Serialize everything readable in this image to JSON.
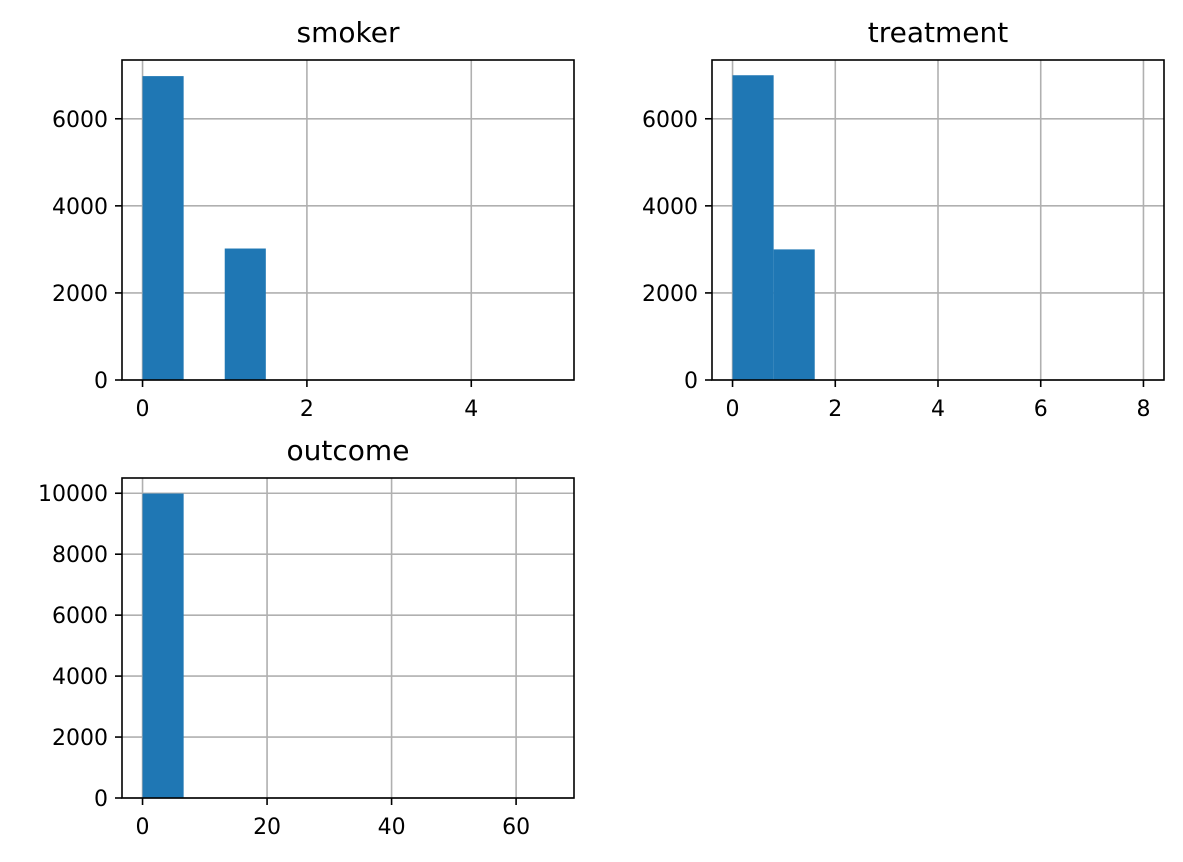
{
  "colors": {
    "bar": "#1f77b4",
    "grid": "#b0b0b0",
    "axis": "#000000",
    "background": "#ffffff"
  },
  "chart_data": [
    {
      "type": "bar",
      "title": "smoker",
      "xlabel": "",
      "ylabel": "",
      "grid": true,
      "xlim": [
        -0.25,
        5.25
      ],
      "ylim": [
        0,
        7350
      ],
      "xticks": [
        0,
        2,
        4
      ],
      "yticks": [
        0,
        2000,
        4000,
        6000
      ],
      "bins": [
        {
          "x0": 0.0,
          "x1": 0.5,
          "count": 6980
        },
        {
          "x0": 0.5,
          "x1": 1.0,
          "count": 0
        },
        {
          "x0": 1.0,
          "x1": 1.5,
          "count": 3020
        },
        {
          "x0": 1.5,
          "x1": 2.0,
          "count": 0
        },
        {
          "x0": 2.0,
          "x1": 2.5,
          "count": 0
        },
        {
          "x0": 2.5,
          "x1": 3.0,
          "count": 0
        },
        {
          "x0": 3.0,
          "x1": 3.5,
          "count": 0
        },
        {
          "x0": 3.5,
          "x1": 4.0,
          "count": 0
        },
        {
          "x0": 4.0,
          "x1": 4.5,
          "count": 0
        },
        {
          "x0": 4.5,
          "x1": 5.0,
          "count": 0
        }
      ]
    },
    {
      "type": "bar",
      "title": "treatment",
      "xlabel": "",
      "ylabel": "",
      "grid": true,
      "xlim": [
        -0.4,
        8.4
      ],
      "ylim": [
        0,
        7350
      ],
      "xticks": [
        0,
        2,
        4,
        6,
        8
      ],
      "yticks": [
        0,
        2000,
        4000,
        6000
      ],
      "bins": [
        {
          "x0": 0.0,
          "x1": 0.8,
          "count": 7000
        },
        {
          "x0": 0.8,
          "x1": 1.6,
          "count": 3000
        },
        {
          "x0": 1.6,
          "x1": 2.4,
          "count": 0
        },
        {
          "x0": 2.4,
          "x1": 3.2,
          "count": 0
        },
        {
          "x0": 3.2,
          "x1": 4.0,
          "count": 0
        },
        {
          "x0": 4.0,
          "x1": 4.8,
          "count": 0
        },
        {
          "x0": 4.8,
          "x1": 5.6,
          "count": 0
        },
        {
          "x0": 5.6,
          "x1": 6.4,
          "count": 0
        },
        {
          "x0": 6.4,
          "x1": 7.2,
          "count": 0
        },
        {
          "x0": 7.2,
          "x1": 8.0,
          "count": 0
        }
      ]
    },
    {
      "type": "bar",
      "title": "outcome",
      "xlabel": "",
      "ylabel": "",
      "grid": true,
      "xlim": [
        -3.3,
        69.3
      ],
      "ylim": [
        0,
        10500
      ],
      "xticks": [
        0,
        20,
        40,
        60
      ],
      "yticks": [
        0,
        2000,
        4000,
        6000,
        8000,
        10000
      ],
      "bins": [
        {
          "x0": 0.0,
          "x1": 6.6,
          "count": 9990
        },
        {
          "x0": 6.6,
          "x1": 13.2,
          "count": 0
        },
        {
          "x0": 13.2,
          "x1": 19.8,
          "count": 0
        },
        {
          "x0": 19.8,
          "x1": 26.4,
          "count": 0
        },
        {
          "x0": 26.4,
          "x1": 33.0,
          "count": 0
        },
        {
          "x0": 33.0,
          "x1": 39.6,
          "count": 0
        },
        {
          "x0": 39.6,
          "x1": 46.2,
          "count": 0
        },
        {
          "x0": 46.2,
          "x1": 52.8,
          "count": 0
        },
        {
          "x0": 52.8,
          "x1": 59.4,
          "count": 0
        },
        {
          "x0": 59.4,
          "x1": 66.0,
          "count": 0
        }
      ]
    }
  ]
}
